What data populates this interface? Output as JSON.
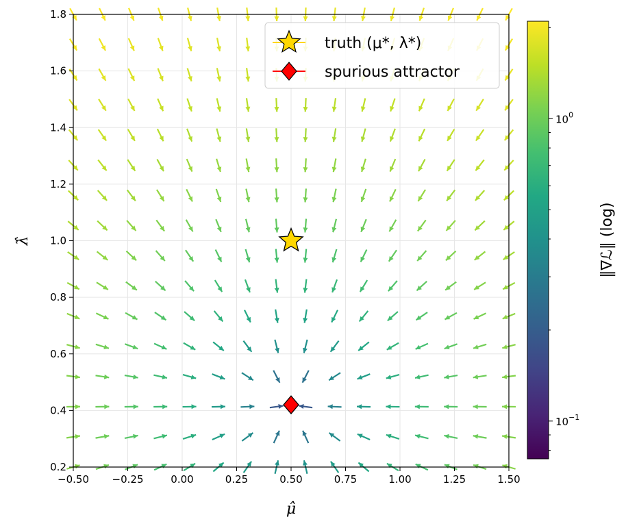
{
  "chart_data": {
    "type": "quiver",
    "xlabel": "μ̂",
    "ylabel": "λ̂",
    "xlim": [
      -0.5,
      1.5
    ],
    "ylim": [
      0.2,
      1.8
    ],
    "xticks": [
      "−0.50",
      "−0.25",
      "0.00",
      "0.25",
      "0.50",
      "0.75",
      "1.00",
      "1.25",
      "1.50"
    ],
    "yticks": [
      "0.2",
      "0.4",
      "0.6",
      "0.8",
      "1.0",
      "1.2",
      "1.4",
      "1.6",
      "1.8"
    ],
    "grid": true,
    "field": {
      "description_free": true,
      "grid_x_range": [
        -0.5,
        1.5
      ],
      "grid_y_range": [
        0.2,
        1.8
      ],
      "nx": 16,
      "ny": 16,
      "attractor": [
        0.5,
        0.42
      ]
    },
    "points": [
      {
        "name": "truth (μ*, λ*)",
        "x": 0.5,
        "y": 1.0,
        "marker": "star",
        "color": "#ffd700"
      },
      {
        "name": "spurious attractor",
        "x": 0.5,
        "y": 0.42,
        "marker": "diamond",
        "color": "#ff0000"
      }
    ],
    "legend": {
      "position": "top-right",
      "entries": [
        {
          "label": "truth (μ*, λ*)",
          "line_color": "#ffd700",
          "marker": "star"
        },
        {
          "label": "spurious attractor",
          "line_color": "#ff0000",
          "marker": "diamond"
        }
      ]
    },
    "colorbar": {
      "label": "‖∇ℒ‖ (log)",
      "scale": "log",
      "range": [
        0.075,
        2.1
      ],
      "ticks": [
        {
          "value": 1.0,
          "label": "10^0"
        },
        {
          "value": 0.1,
          "label": "10^−1"
        }
      ],
      "colormap": "viridis"
    }
  }
}
